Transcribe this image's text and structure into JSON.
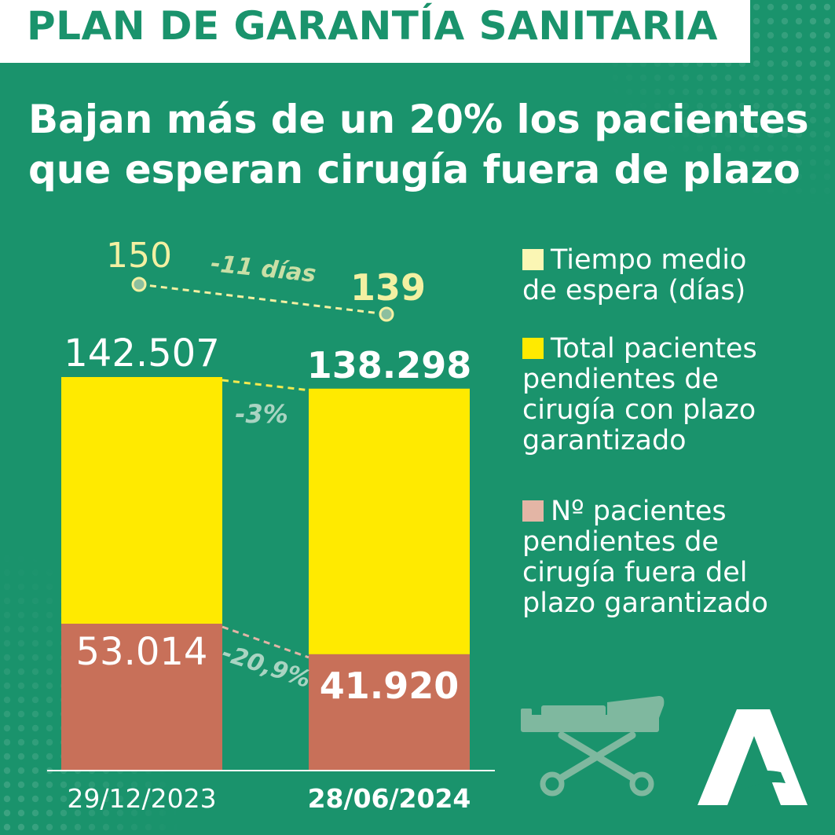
{
  "header": {
    "banner": "PLAN DE GARANTÍA SANITARIA"
  },
  "headline": {
    "line1": "Bajan más de un 20% los pacientes",
    "line2": "que esperan cirugía fuera de plazo"
  },
  "colors": {
    "background": "#1a936c",
    "banner_text": "#1a936c",
    "total_bar": "#ffea00",
    "out_of_term_bar": "#c87059",
    "wait_line": "#f3f0a2",
    "legend_wait": "#fbf6b4",
    "legend_total": "#ffea00",
    "legend_out": "#e3b5a5",
    "connector_total": "#f3e94f",
    "connector_out": "#e0b5a6",
    "pct_label": "#a9d4c2"
  },
  "chart_data": {
    "type": "bar",
    "categories": [
      "29/12/2023",
      "28/06/2024"
    ],
    "series": [
      {
        "name": "Total pacientes pendientes de cirugía con plazo garantizado",
        "values": [
          142507,
          138298
        ],
        "labels": [
          "142.507",
          "138.298"
        ]
      },
      {
        "name": "Nº pacientes pendientes de cirugía fuera del plazo garantizado",
        "values": [
          53014,
          41920
        ],
        "labels": [
          "53.014",
          "41.920"
        ]
      }
    ],
    "wait_time": {
      "name": "Tiempo medio de espera (días)",
      "values": [
        150,
        139
      ],
      "labels": [
        "150",
        "139"
      ]
    },
    "changes": {
      "wait_time": "-11 días",
      "total": "-3%",
      "out_of_term": "-20,9%"
    }
  },
  "legend": [
    {
      "icon": "legend-swatch-wait-time",
      "lines": [
        "Tiempo medio",
        "de espera (días)"
      ]
    },
    {
      "icon": "legend-swatch-total",
      "lines": [
        "Total pacientes",
        "pendientes de",
        "cirugía con plazo",
        "garantizado"
      ]
    },
    {
      "icon": "legend-swatch-out-of-term",
      "lines": [
        "Nº pacientes",
        "pendientes de",
        "cirugía fuera del",
        "plazo garantizado"
      ]
    }
  ],
  "icons": {
    "stretcher": "stretcher-icon",
    "logo": "junta-andalucia-logo"
  }
}
